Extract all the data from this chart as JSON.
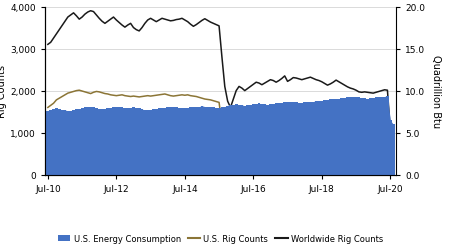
{
  "ylabel_left": "Rig Counts",
  "ylabel_right": "Quadrillion Btu",
  "ylim_left": [
    0,
    4000
  ],
  "ylim_right": [
    0,
    20.0
  ],
  "yticks_left": [
    0,
    1000,
    2000,
    3000,
    4000
  ],
  "yticks_right": [
    0.0,
    5.0,
    10.0,
    15.0,
    20.0
  ],
  "xtick_labels": [
    "Jul-10",
    "Jul-12",
    "Jul-14",
    "Jul-16",
    "Jul-18",
    "Jul-20"
  ],
  "bar_color": "#4472C4",
  "us_rig_color": "#8B7536",
  "world_rig_color": "#1A1A1A",
  "background_color": "#FFFFFF",
  "grid_color": "#CCCCCC",
  "energy_btu": [
    7.6,
    7.7,
    7.8,
    7.9,
    7.8,
    7.7,
    7.7,
    7.6,
    7.6,
    7.7,
    7.8,
    7.8,
    7.9,
    8.0,
    8.0,
    8.1,
    8.0,
    7.9,
    7.8,
    7.8,
    7.8,
    7.9,
    7.9,
    8.0,
    8.1,
    8.1,
    8.0,
    7.9,
    7.9,
    7.9,
    8.0,
    7.9,
    7.9,
    7.8,
    7.7,
    7.7,
    7.7,
    7.8,
    7.8,
    7.9,
    7.9,
    7.9,
    8.0,
    8.0,
    8.1,
    8.0,
    7.9,
    7.9,
    7.9,
    7.9,
    8.0,
    8.0,
    8.1,
    8.1,
    8.2,
    8.1,
    8.1,
    8.0,
    8.0,
    7.9,
    7.9,
    8.0,
    8.1,
    8.2,
    8.3,
    8.3,
    8.4,
    8.3,
    8.3,
    8.2,
    8.3,
    8.3,
    8.4,
    8.4,
    8.5,
    8.4,
    8.4,
    8.3,
    8.4,
    8.4,
    8.5,
    8.5,
    8.5,
    8.6,
    8.6,
    8.7,
    8.6,
    8.6,
    8.5,
    8.5,
    8.6,
    8.6,
    8.7,
    8.7,
    8.8,
    8.8,
    8.8,
    8.9,
    8.9,
    9.0,
    9.0,
    9.0,
    9.0,
    9.1,
    9.1,
    9.2,
    9.2,
    9.3,
    9.2,
    9.2,
    9.1,
    9.1,
    9.0,
    9.1,
    9.1,
    9.2,
    9.2,
    9.3,
    9.3,
    9.4,
    6.5,
    6.0
  ],
  "us_rig_counts": [
    1600,
    1650,
    1700,
    1780,
    1820,
    1860,
    1900,
    1940,
    1960,
    1980,
    2000,
    2010,
    1990,
    1970,
    1950,
    1930,
    1960,
    1980,
    1970,
    1950,
    1930,
    1920,
    1900,
    1890,
    1880,
    1890,
    1900,
    1880,
    1870,
    1860,
    1870,
    1860,
    1850,
    1860,
    1870,
    1880,
    1870,
    1880,
    1890,
    1900,
    1910,
    1920,
    1900,
    1880,
    1870,
    1880,
    1890,
    1900,
    1890,
    1900,
    1880,
    1870,
    1860,
    1840,
    1820,
    1800,
    1790,
    1780,
    1760,
    1740,
    1720,
    1200,
    900,
    700,
    500,
    420,
    400,
    390,
    370,
    360,
    400,
    480,
    560,
    640,
    700,
    750,
    800,
    840,
    870,
    900,
    920,
    940,
    960,
    980,
    970,
    960,
    950,
    940,
    930,
    910,
    920,
    940,
    950,
    960,
    970,
    980,
    1000,
    1020,
    1010,
    1000,
    990,
    980,
    970,
    960,
    950,
    940,
    930,
    920,
    910,
    900,
    890,
    880,
    860,
    840,
    820,
    800,
    780,
    760,
    740,
    720,
    200,
    150
  ],
  "worldwide_rig_counts": [
    3100,
    3150,
    3250,
    3350,
    3450,
    3550,
    3650,
    3750,
    3800,
    3850,
    3780,
    3700,
    3750,
    3820,
    3870,
    3900,
    3880,
    3800,
    3720,
    3650,
    3600,
    3650,
    3700,
    3750,
    3680,
    3620,
    3560,
    3510,
    3560,
    3600,
    3500,
    3450,
    3420,
    3500,
    3600,
    3680,
    3720,
    3680,
    3640,
    3680,
    3720,
    3700,
    3680,
    3660,
    3670,
    3690,
    3700,
    3720,
    3680,
    3640,
    3580,
    3530,
    3570,
    3620,
    3670,
    3710,
    3670,
    3630,
    3600,
    3570,
    3540,
    2800,
    2100,
    1750,
    1600,
    1800,
    2000,
    2100,
    2060,
    2000,
    2050,
    2100,
    2150,
    2200,
    2180,
    2140,
    2180,
    2220,
    2260,
    2240,
    2200,
    2240,
    2290,
    2350,
    2220,
    2260,
    2310,
    2300,
    2280,
    2260,
    2280,
    2300,
    2320,
    2290,
    2260,
    2240,
    2210,
    2170,
    2130,
    2160,
    2200,
    2250,
    2210,
    2170,
    2130,
    2090,
    2060,
    2040,
    2010,
    1970,
    1960,
    1970,
    1960,
    1950,
    1940,
    1960,
    1980,
    2000,
    2020,
    2010,
    1050,
    820
  ],
  "n_points": 122
}
